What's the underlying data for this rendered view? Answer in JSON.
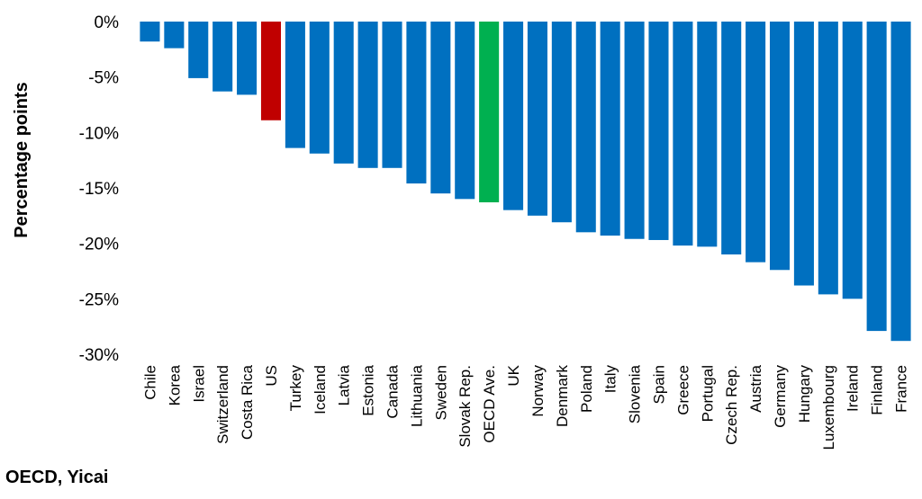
{
  "source_note": "OECD, Yicai",
  "chart_data": {
    "type": "bar",
    "ylabel": "Percentage points",
    "xlabel": "",
    "ylim": [
      -30,
      0
    ],
    "yticks": [
      "0%",
      "-5%",
      "-10%",
      "-15%",
      "-20%",
      "-25%",
      "-30%"
    ],
    "ytick_values": [
      0,
      -5,
      -10,
      -15,
      -20,
      -25,
      -30
    ],
    "grid": false,
    "categories": [
      "Chile",
      "Korea",
      "Israel",
      "Switzerland",
      "Costa Rica",
      "US",
      "Turkey",
      "Iceland",
      "Latvia",
      "Estonia",
      "Canada",
      "Lithuania",
      "Sweden",
      "Slovak Rep.",
      "OECD Ave.",
      "UK",
      "Norway",
      "Denmark",
      "Poland",
      "Italy",
      "Slovenia",
      "Spain",
      "Greece",
      "Portugal",
      "Czech Rep.",
      "Austria",
      "Germany",
      "Hungary",
      "Luxembourg",
      "Ireland",
      "Finland",
      "France"
    ],
    "values": [
      -1.8,
      -2.4,
      -5.1,
      -6.3,
      -6.6,
      -8.9,
      -11.4,
      -11.9,
      -12.8,
      -13.2,
      -13.2,
      -14.6,
      -15.5,
      -16.0,
      -16.3,
      -17.0,
      -17.5,
      -18.1,
      -19.0,
      -19.3,
      -19.6,
      -19.7,
      -20.2,
      -20.3,
      -21.0,
      -21.7,
      -22.4,
      -23.8,
      -24.6,
      -25.0,
      -27.9,
      -28.8
    ],
    "colors": {
      "default": "#0070C0",
      "US": "#C00000",
      "OECD Ave.": "#00B050"
    }
  }
}
